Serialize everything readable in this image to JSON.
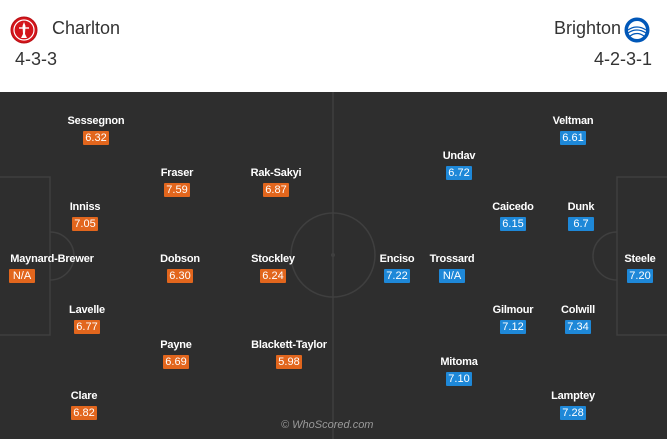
{
  "home": {
    "team_name": "Charlton",
    "formation": "4-3-3",
    "crest_icon": "charlton-crest-icon",
    "color": "#e2661d",
    "players": [
      {
        "name": "Sessegnon",
        "rating": "6.32"
      },
      {
        "name": "Fraser",
        "rating": "7.59"
      },
      {
        "name": "Rak-Sakyi",
        "rating": "6.87"
      },
      {
        "name": "Inniss",
        "rating": "7.05"
      },
      {
        "name": "Maynard-Brewer",
        "rating": "N/A"
      },
      {
        "name": "Dobson",
        "rating": "6.30"
      },
      {
        "name": "Stockley",
        "rating": "6.24"
      },
      {
        "name": "Lavelle",
        "rating": "6.77"
      },
      {
        "name": "Payne",
        "rating": "6.69"
      },
      {
        "name": "Blackett-Taylor",
        "rating": "5.98"
      },
      {
        "name": "Clare",
        "rating": "6.82"
      }
    ]
  },
  "away": {
    "team_name": "Brighton",
    "formation": "4-2-3-1",
    "crest_icon": "brighton-crest-icon",
    "color": "#1e88d8",
    "players": [
      {
        "name": "Veltman",
        "rating": "6.61"
      },
      {
        "name": "Undav",
        "rating": "6.72"
      },
      {
        "name": "Caicedo",
        "rating": "6.15"
      },
      {
        "name": "Dunk",
        "rating": "6.7"
      },
      {
        "name": "Enciso",
        "rating": "7.22"
      },
      {
        "name": "Trossard",
        "rating": "N/A"
      },
      {
        "name": "Steele",
        "rating": "7.20"
      },
      {
        "name": "Gilmour",
        "rating": "7.12"
      },
      {
        "name": "Colwill",
        "rating": "7.34"
      },
      {
        "name": "Mitoma",
        "rating": "7.10"
      },
      {
        "name": "Lamptey",
        "rating": "7.28"
      }
    ]
  },
  "watermark": "© WhoScored.com",
  "pitch_color": "#2e2e2e"
}
